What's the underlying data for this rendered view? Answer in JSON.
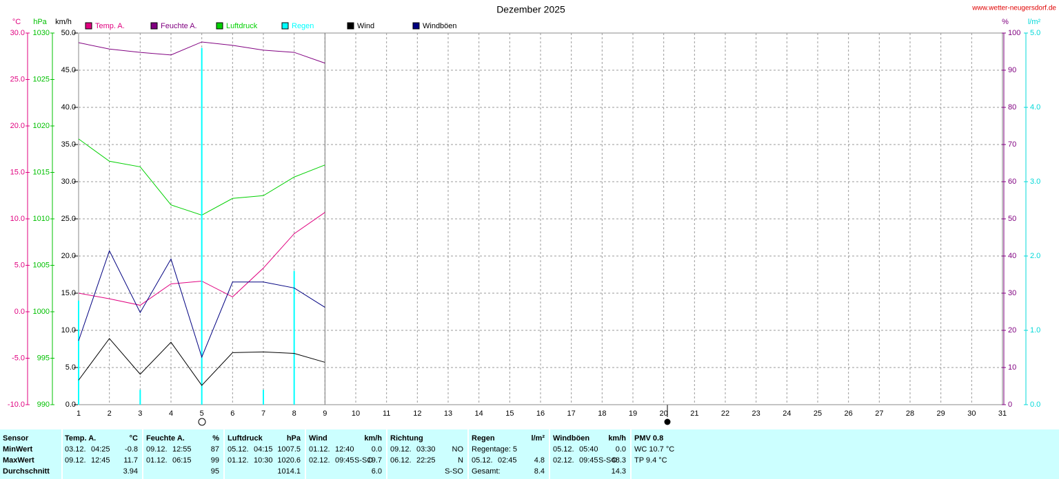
{
  "chart_data": {
    "type": "line",
    "title": "Dezember 2025",
    "source": "www.wetter-neugersdorf.de",
    "x": [
      1,
      2,
      3,
      4,
      5,
      6,
      7,
      8,
      9
    ],
    "xlim": [
      1,
      31
    ],
    "xticks": [
      1,
      2,
      3,
      4,
      5,
      6,
      7,
      8,
      9,
      10,
      11,
      12,
      13,
      14,
      15,
      16,
      17,
      18,
      19,
      20,
      21,
      22,
      23,
      24,
      25,
      26,
      27,
      28,
      29,
      30,
      31
    ],
    "grid": true,
    "axes": [
      {
        "unit": "°C",
        "color": "#e0007f",
        "side": "left",
        "lim": [
          -10,
          30
        ],
        "ticks": [
          {
            "value": -10,
            "label": "-10.0"
          },
          {
            "value": -5,
            "label": "-5.0"
          },
          {
            "value": 0,
            "label": "0.0"
          },
          {
            "value": 5,
            "label": "5.0"
          },
          {
            "value": 10,
            "label": "10.0"
          },
          {
            "value": 15,
            "label": "15.0"
          },
          {
            "value": 20,
            "label": "20.0"
          },
          {
            "value": 25,
            "label": "25.0"
          },
          {
            "value": 30,
            "label": "30.0"
          }
        ]
      },
      {
        "unit": "hPa",
        "color": "#00c000",
        "side": "left",
        "lim": [
          990,
          1030
        ],
        "ticks": [
          990,
          995,
          1000,
          1005,
          1010,
          1015,
          1020,
          1025,
          1030
        ]
      },
      {
        "unit": "km/h",
        "color": "#000000",
        "side": "left",
        "lim": [
          0,
          50
        ],
        "ticks": [
          {
            "value": 0,
            "label": "0.0"
          },
          {
            "value": 5,
            "label": "5.0"
          },
          {
            "value": 10,
            "label": "10.0"
          },
          {
            "value": 15,
            "label": "15.0"
          },
          {
            "value": 20,
            "label": "20.0"
          },
          {
            "value": 25,
            "label": "25.0"
          },
          {
            "value": 30,
            "label": "30.0"
          },
          {
            "value": 35,
            "label": "35.0"
          },
          {
            "value": 40,
            "label": "40.0"
          },
          {
            "value": 45,
            "label": "45.0"
          },
          {
            "value": 50,
            "label": "50.0"
          }
        ]
      },
      {
        "unit": "%",
        "color": "#800080",
        "side": "right",
        "lim": [
          0,
          100
        ],
        "ticks": [
          0,
          10,
          20,
          30,
          40,
          50,
          60,
          70,
          80,
          90,
          100
        ]
      },
      {
        "unit": "l/m²",
        "color": "#00d8d8",
        "side": "right",
        "lim": [
          0,
          5
        ],
        "ticks": [
          {
            "value": 0,
            "label": "0.0"
          },
          {
            "value": 1,
            "label": "1.0"
          },
          {
            "value": 2,
            "label": "2.0"
          },
          {
            "value": 3,
            "label": "3.0"
          },
          {
            "value": 4,
            "label": "4.0"
          },
          {
            "value": 5,
            "label": "5.0"
          }
        ]
      }
    ],
    "series": [
      {
        "name": "Temp. A.",
        "color": "#e0007f",
        "axis": 0,
        "type": "line",
        "values": [
          2.0,
          1.4,
          0.7,
          3.0,
          3.3,
          1.6,
          4.7,
          8.4,
          10.7
        ]
      },
      {
        "name": "Feuchte A.",
        "color": "#800080",
        "axis": 3,
        "type": "line",
        "values": [
          97.4,
          95.7,
          94.8,
          94.1,
          97.6,
          96.7,
          95.4,
          94.8,
          91.9
        ]
      },
      {
        "name": "Luftdruck",
        "color": "#00d000",
        "axis": 1,
        "type": "line",
        "values": [
          1018.6,
          1016.2,
          1015.6,
          1011.5,
          1010.4,
          1012.2,
          1012.5,
          1014.5,
          1015.8
        ]
      },
      {
        "name": "Regen",
        "color": "#00ffff",
        "axis": 4,
        "type": "bar",
        "values": [
          1.4,
          0,
          0.2,
          0,
          4.8,
          0,
          0.2,
          1.8,
          0
        ]
      },
      {
        "name": "Wind",
        "color": "#000000",
        "axis": 2,
        "type": "line",
        "values": [
          3.3,
          8.9,
          4.1,
          8.4,
          2.6,
          7.0,
          7.1,
          6.9,
          5.7
        ]
      },
      {
        "name": "Windböen",
        "color": "#000080",
        "axis": 2,
        "type": "line",
        "values": [
          8.6,
          20.7,
          12.4,
          19.6,
          6.4,
          16.5,
          16.5,
          15.7,
          13.1
        ]
      }
    ]
  },
  "table": {
    "columns": [
      {
        "header": "Sensor",
        "rows": [
          {
            "left": [
              "MinWert"
            ]
          },
          {
            "left": [
              "MaxWert"
            ]
          },
          {
            "left": [
              "Durchschnitt"
            ]
          }
        ]
      },
      {
        "header": "Temp. A.",
        "unit": "°C",
        "rows": [
          {
            "left": [
              "03.12.",
              "04:25"
            ],
            "right": "-0.8"
          },
          {
            "left": [
              "09.12.",
              "12:45"
            ],
            "right": "11.7"
          },
          {
            "right": "3.94"
          }
        ]
      },
      {
        "header": "Feuchte A.",
        "unit": "%",
        "rows": [
          {
            "left": [
              "09.12.",
              "12:55"
            ],
            "right": "87"
          },
          {
            "left": [
              "01.12.",
              "06:15"
            ],
            "right": "99"
          },
          {
            "right": "95"
          }
        ]
      },
      {
        "header": "Luftdruck",
        "unit": "hPa",
        "rows": [
          {
            "left": [
              "05.12.",
              "04:15"
            ],
            "right": "1007.5"
          },
          {
            "left": [
              "01.12.",
              "10:30"
            ],
            "right": "1020.6"
          },
          {
            "right": "1014.1"
          }
        ]
      },
      {
        "header": "Wind",
        "unit": "km/h",
        "rows": [
          {
            "left": [
              "01.12.",
              "12:40"
            ],
            "right": "0.0"
          },
          {
            "left": [
              "02.12.",
              "09:45",
              "S-SO"
            ],
            "right": "19.7"
          },
          {
            "right": "6.0"
          }
        ]
      },
      {
        "header": "Richtung",
        "rows": [
          {
            "left": [
              "09.12.",
              "03:30"
            ],
            "right": "NO"
          },
          {
            "left": [
              "06.12.",
              "22:25"
            ],
            "right": "N"
          },
          {
            "right": "S-SO"
          }
        ]
      },
      {
        "header": "Regen",
        "unit": "l/m²",
        "rows": [
          {
            "left": [
              "Regentage: 5"
            ]
          },
          {
            "left": [
              "05.12.",
              "02:45"
            ],
            "right": "4.8"
          },
          {
            "left": [
              "Gesamt:"
            ],
            "right": "8.4"
          }
        ]
      },
      {
        "header": "Windböen",
        "unit": "km/h",
        "rows": [
          {
            "left": [
              "05.12.",
              "05:40"
            ],
            "right": "0.0"
          },
          {
            "left": [
              "02.12.",
              "09:45",
              "S-SO"
            ],
            "right": "48.3"
          },
          {
            "right": "14.3"
          }
        ]
      },
      {
        "header": "PMV 0.8",
        "rows": [
          {
            "left": [
              "WC 10.7 °C"
            ]
          },
          {
            "left": [
              "TP 9.4 °C"
            ]
          }
        ]
      }
    ]
  }
}
